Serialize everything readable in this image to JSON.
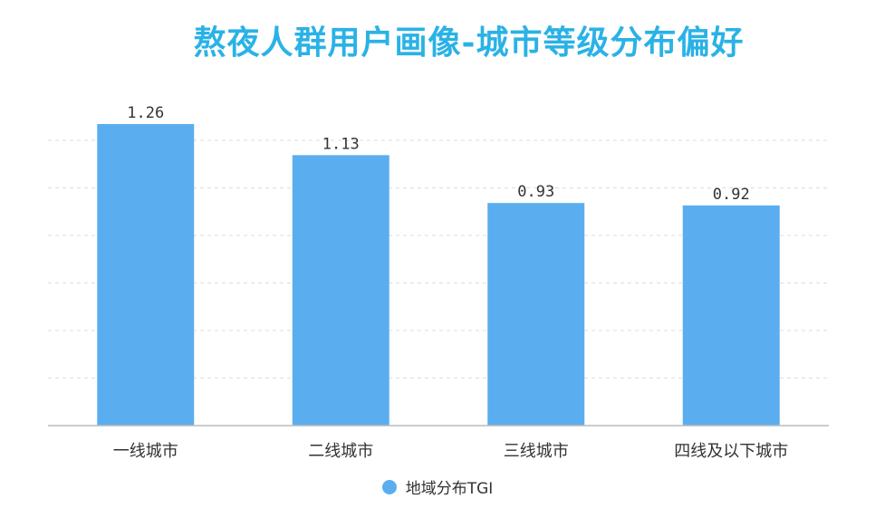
{
  "chart_data": {
    "type": "bar",
    "title": "熬夜人群用户画像-城市等级分布偏好",
    "categories": [
      "一线城市",
      "二线城市",
      "三线城市",
      "四线及以下城市"
    ],
    "series": [
      {
        "name": "地域分布TGI",
        "values": [
          1.26,
          1.13,
          0.93,
          0.92
        ],
        "value_labels": [
          "1.26",
          "1.13",
          "0.93",
          "0.92"
        ],
        "color": "#5aaef0"
      }
    ],
    "ylim": [
      0,
      1.4
    ],
    "y_axis_visible": false,
    "grid": "horizontal dashed",
    "legend_position": "bottom-center",
    "colors": {
      "title": "#2ab2e6",
      "bar": "#5aaef0",
      "grid": "#dddddd",
      "axis": "#bbbbbb",
      "text": "#333333"
    }
  }
}
